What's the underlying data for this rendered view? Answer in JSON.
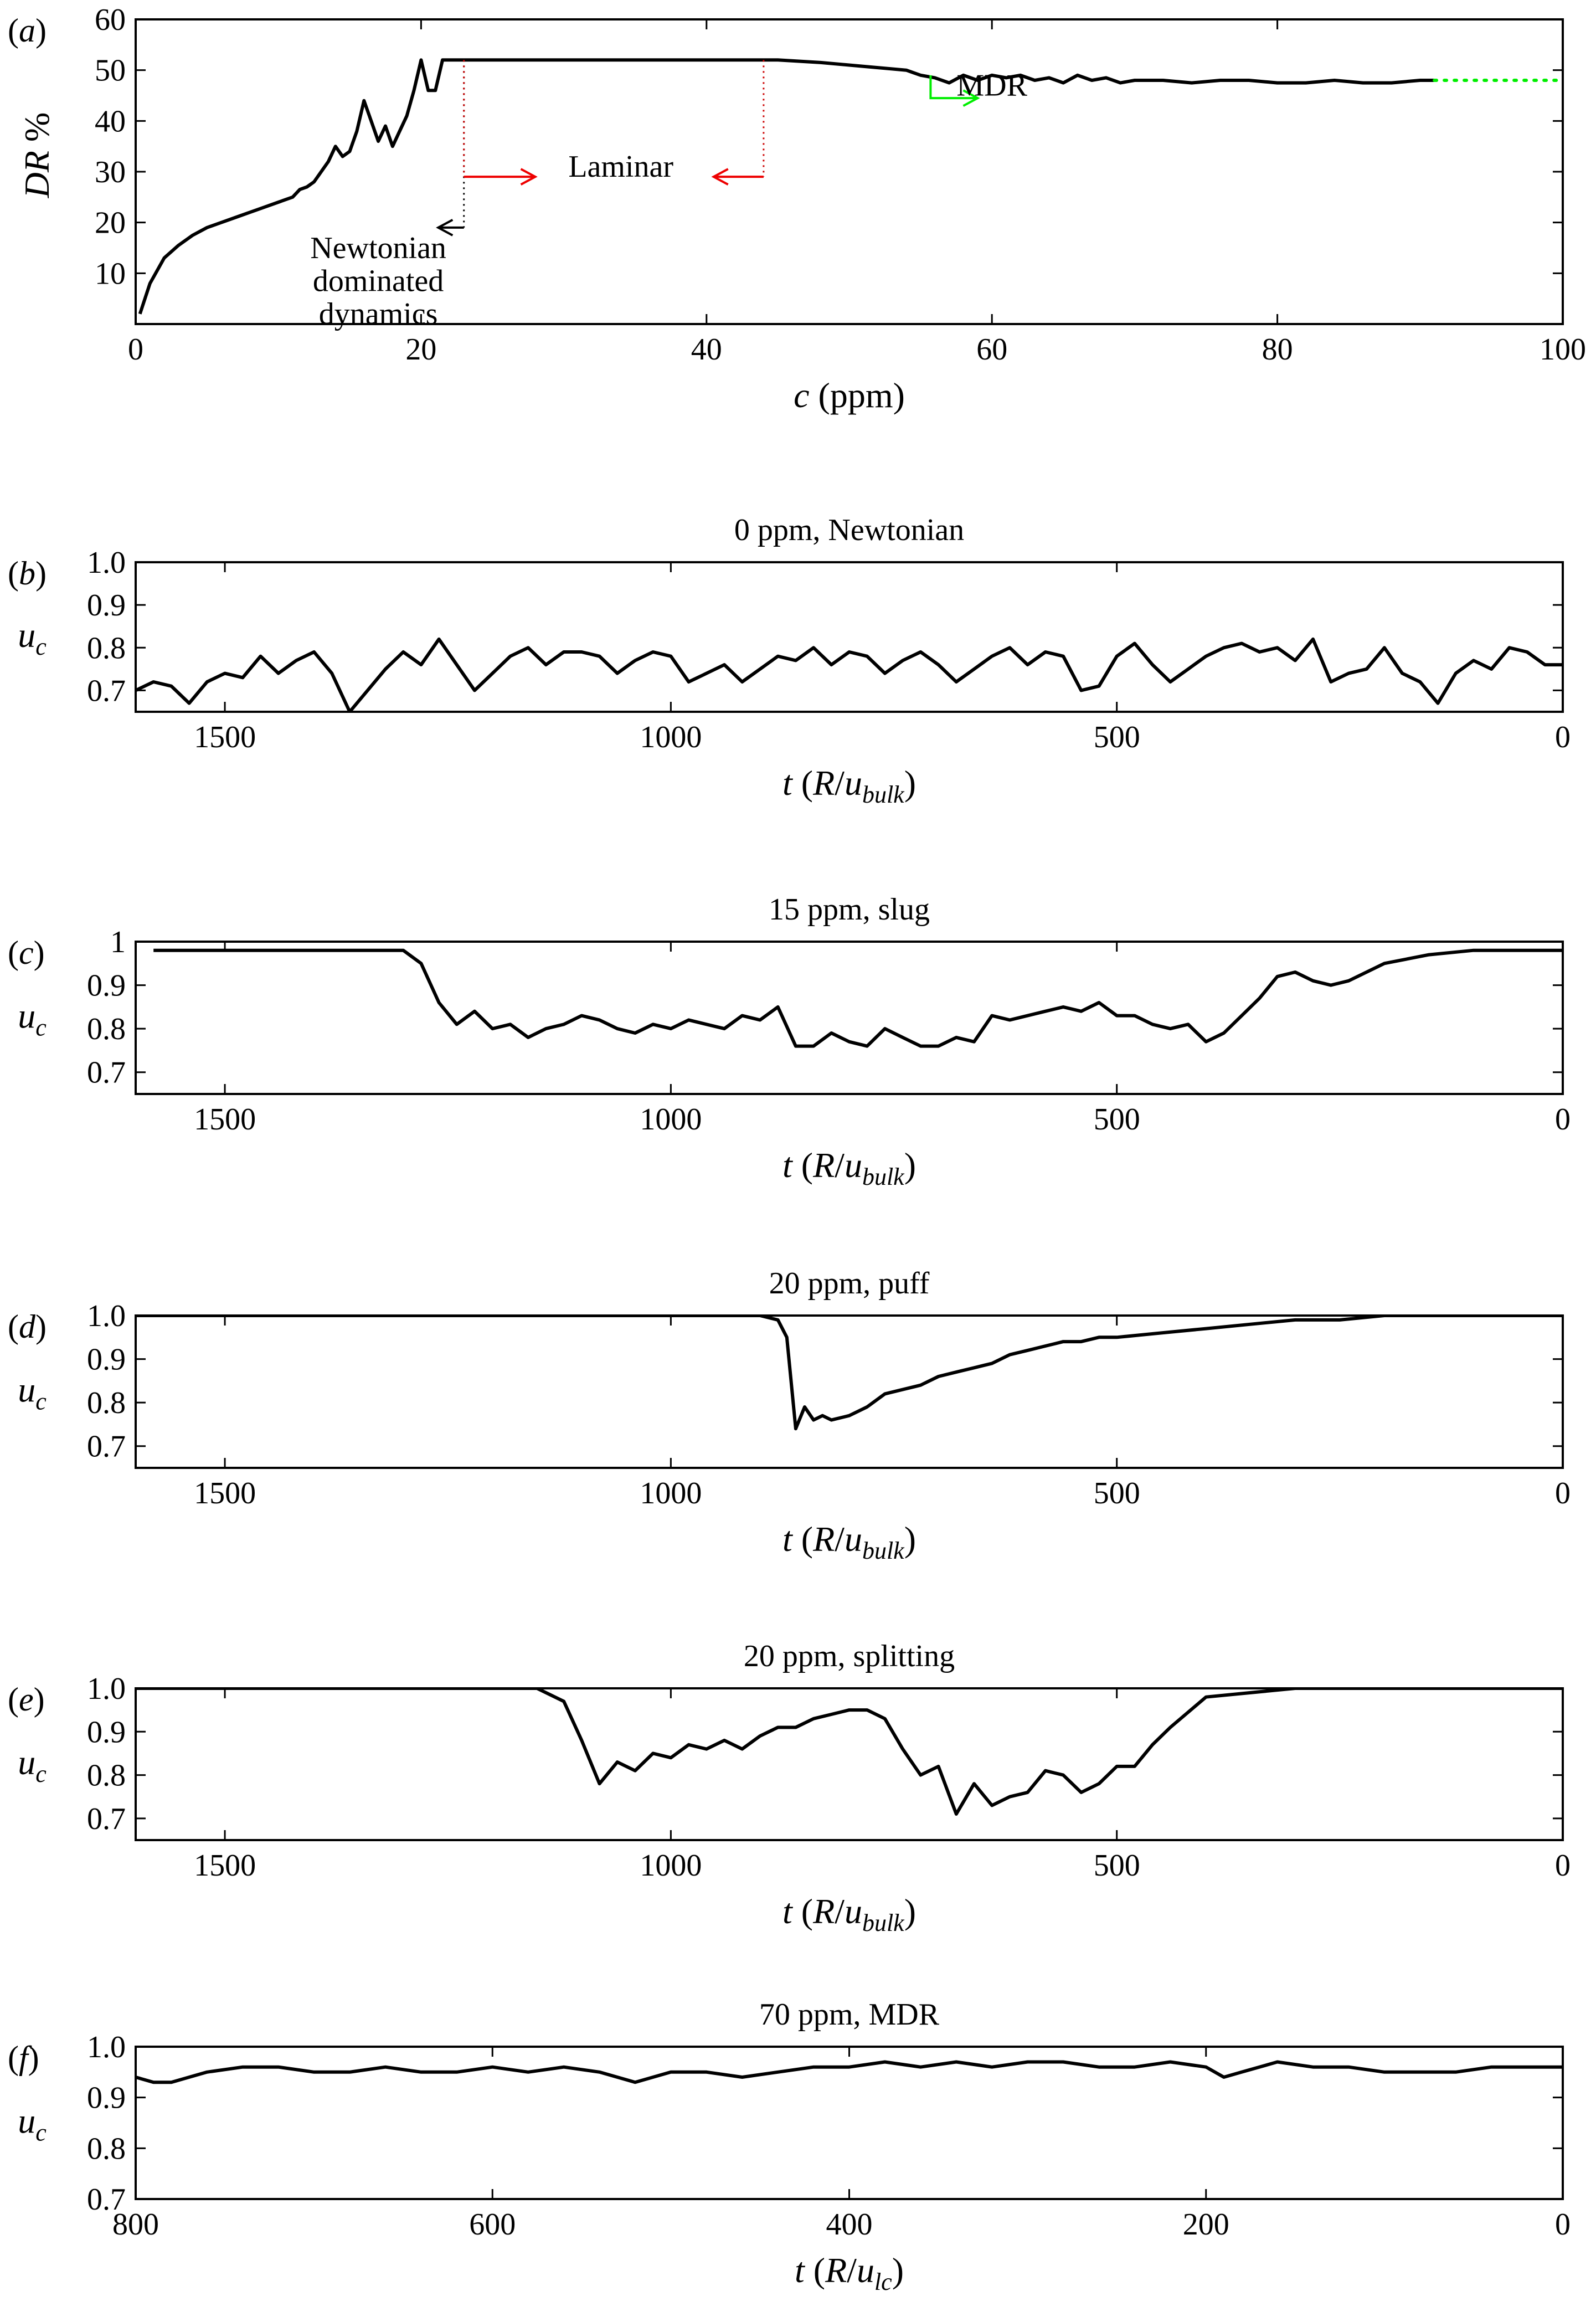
{
  "chart_data": [
    {
      "id": "a",
      "type": "line",
      "panel_label": "(a)",
      "title": "",
      "xlabel": "c (ppm)",
      "ylabel": "DR %",
      "xlim": [
        0,
        100
      ],
      "ylim": [
        0,
        60
      ],
      "xticks": [
        0,
        20,
        40,
        60,
        80,
        100
      ],
      "yticks": [
        10,
        20,
        30,
        40,
        50,
        60
      ],
      "series": [
        {
          "color": "#000000",
          "x": [
            0.3,
            1,
            2,
            3,
            4,
            5,
            6,
            7,
            8,
            9,
            10,
            11,
            11.5,
            12,
            12.5,
            13,
            13.5,
            14,
            14.5,
            15,
            15.5,
            16,
            16.5,
            17,
            17.5,
            18,
            18.5,
            19,
            19.5,
            20,
            20.5,
            21,
            21.5,
            22,
            22.5,
            23,
            25,
            30,
            35,
            40,
            45,
            48,
            50,
            52,
            54,
            55,
            56,
            57,
            58,
            59,
            60,
            61,
            62,
            63,
            64,
            65,
            66,
            67,
            68,
            69,
            70,
            72,
            74,
            76,
            78,
            80,
            82,
            84,
            86,
            88,
            90,
            91
          ],
          "y": [
            2,
            8,
            13,
            15.5,
            17.5,
            19,
            20,
            21,
            22,
            23,
            24,
            25,
            26.5,
            27,
            28,
            30,
            32,
            35,
            33,
            34,
            38,
            44,
            40,
            36,
            39,
            35,
            38,
            41,
            46,
            52,
            46,
            46,
            52,
            52,
            52,
            52,
            52,
            52,
            52,
            52,
            52,
            51.5,
            51,
            50.5,
            50,
            49,
            48.5,
            47.5,
            49,
            48,
            49,
            48.5,
            49,
            48,
            48.5,
            47.5,
            49,
            48,
            48.5,
            47.5,
            48,
            48,
            47.5,
            48,
            48,
            47.5,
            47.5,
            48,
            47.5,
            47.5,
            48,
            48
          ]
        },
        {
          "color": "#00ee00",
          "style": "dotted",
          "x": [
            91,
            100
          ],
          "y": [
            48,
            48
          ]
        }
      ],
      "annotations": [
        {
          "text": "Newtonian",
          "x": 17,
          "y": 13
        },
        {
          "text": "dominated",
          "x": 17,
          "y": 6.5
        },
        {
          "text": "dynamics",
          "x": 17,
          "y": 0
        },
        {
          "text": "Laminar",
          "x": 34,
          "y": 29
        },
        {
          "text": "MDR",
          "x": 60,
          "y": 45
        }
      ],
      "markers": [
        {
          "kind": "dotted-vline",
          "color": "#000000",
          "x": 23,
          "y_from": 52,
          "y_to": 19
        },
        {
          "kind": "dotted-vline",
          "color": "#cc0000",
          "x": 23,
          "y_from": 52,
          "y_to": 29
        },
        {
          "kind": "dotted-vline",
          "color": "#cc0000",
          "x": 44,
          "y_from": 52,
          "y_to": 29
        },
        {
          "kind": "arrow",
          "color": "#000000",
          "x_from": 23,
          "x_to": 21.2,
          "y": 19
        },
        {
          "kind": "arrow",
          "color": "#ee0000",
          "x_from": 23,
          "x_to": 28,
          "y": 29
        },
        {
          "kind": "arrow",
          "color": "#ee0000",
          "x_from": 44,
          "x_to": 40.5,
          "y": 29
        },
        {
          "kind": "elbow-arrow",
          "color": "#00ee00",
          "x": 55.7,
          "y_from": 49,
          "y_to": 44.5,
          "x_to": 59
        }
      ]
    },
    {
      "id": "b",
      "type": "line",
      "panel_label": "(b)",
      "title": "0 ppm, Newtonian",
      "xlabel": "t (R/ubulk)",
      "ylabel": "uc",
      "xlim": [
        1600,
        0
      ],
      "ylim": [
        0.65,
        1.0
      ],
      "xticks": [
        1500,
        1000,
        500,
        0
      ],
      "yticks": [
        0.7,
        0.8,
        0.9,
        1.0
      ],
      "ytick_labels": [
        "0.7",
        "0.8",
        "0.9",
        "1.0"
      ],
      "series": [
        {
          "color": "#000000",
          "x": [
            1600,
            1580,
            1560,
            1540,
            1520,
            1500,
            1480,
            1460,
            1440,
            1420,
            1400,
            1380,
            1360,
            1340,
            1320,
            1300,
            1280,
            1260,
            1240,
            1220,
            1200,
            1180,
            1160,
            1140,
            1120,
            1100,
            1080,
            1060,
            1040,
            1020,
            1000,
            980,
            960,
            940,
            920,
            900,
            880,
            860,
            840,
            820,
            800,
            780,
            760,
            740,
            720,
            700,
            680,
            660,
            640,
            620,
            600,
            580,
            560,
            540,
            520,
            500,
            480,
            460,
            440,
            420,
            400,
            380,
            360,
            340,
            320,
            300,
            280,
            260,
            240,
            220,
            200,
            180,
            160,
            140,
            120,
            100,
            80,
            60,
            40,
            20,
            0
          ],
          "y": [
            0.7,
            0.72,
            0.71,
            0.67,
            0.72,
            0.74,
            0.73,
            0.78,
            0.74,
            0.77,
            0.79,
            0.74,
            0.65,
            0.7,
            0.75,
            0.79,
            0.76,
            0.82,
            0.76,
            0.7,
            0.74,
            0.78,
            0.8,
            0.76,
            0.79,
            0.79,
            0.78,
            0.74,
            0.77,
            0.79,
            0.78,
            0.72,
            0.74,
            0.76,
            0.72,
            0.75,
            0.78,
            0.77,
            0.8,
            0.76,
            0.79,
            0.78,
            0.74,
            0.77,
            0.79,
            0.76,
            0.72,
            0.75,
            0.78,
            0.8,
            0.76,
            0.79,
            0.78,
            0.7,
            0.71,
            0.78,
            0.81,
            0.76,
            0.72,
            0.75,
            0.78,
            0.8,
            0.81,
            0.79,
            0.8,
            0.77,
            0.82,
            0.72,
            0.74,
            0.75,
            0.8,
            0.74,
            0.72,
            0.67,
            0.74,
            0.77,
            0.75,
            0.8,
            0.79,
            0.76,
            0.76
          ]
        }
      ]
    },
    {
      "id": "c",
      "type": "line",
      "panel_label": "(c)",
      "title": "15 ppm, slug",
      "xlabel": "t (R/ubulk)",
      "ylabel": "uc",
      "xlim": [
        1600,
        0
      ],
      "ylim": [
        0.65,
        1.0
      ],
      "xticks": [
        1500,
        1000,
        500,
        0
      ],
      "yticks": [
        0.7,
        0.8,
        0.9,
        1.0
      ],
      "ytick_labels": [
        "0.7",
        "0.8",
        "0.9",
        "1"
      ],
      "series": [
        {
          "color": "#000000",
          "x": [
            1580,
            1500,
            1400,
            1300,
            1280,
            1260,
            1240,
            1220,
            1200,
            1180,
            1160,
            1140,
            1120,
            1100,
            1080,
            1060,
            1040,
            1020,
            1000,
            980,
            960,
            940,
            920,
            900,
            880,
            860,
            840,
            820,
            800,
            780,
            760,
            740,
            720,
            700,
            680,
            660,
            640,
            620,
            600,
            580,
            560,
            540,
            520,
            500,
            480,
            460,
            440,
            420,
            400,
            380,
            360,
            340,
            320,
            300,
            280,
            260,
            240,
            200,
            150,
            100,
            50,
            0
          ],
          "y": [
            0.98,
            0.98,
            0.98,
            0.98,
            0.95,
            0.86,
            0.81,
            0.84,
            0.8,
            0.81,
            0.78,
            0.8,
            0.81,
            0.83,
            0.82,
            0.8,
            0.79,
            0.81,
            0.8,
            0.82,
            0.81,
            0.8,
            0.83,
            0.82,
            0.85,
            0.76,
            0.76,
            0.79,
            0.77,
            0.76,
            0.8,
            0.78,
            0.76,
            0.76,
            0.78,
            0.77,
            0.83,
            0.82,
            0.83,
            0.84,
            0.85,
            0.84,
            0.86,
            0.83,
            0.83,
            0.81,
            0.8,
            0.81,
            0.77,
            0.79,
            0.83,
            0.87,
            0.92,
            0.93,
            0.91,
            0.9,
            0.91,
            0.95,
            0.97,
            0.98,
            0.98,
            0.98
          ]
        }
      ]
    },
    {
      "id": "d",
      "type": "line",
      "panel_label": "(d)",
      "title": "20 ppm, puff",
      "xlabel": "t (R/ubulk)",
      "ylabel": "uc",
      "xlim": [
        1600,
        0
      ],
      "ylim": [
        0.65,
        1.0
      ],
      "xticks": [
        1500,
        1000,
        500,
        0
      ],
      "yticks": [
        0.7,
        0.8,
        0.9,
        1.0
      ],
      "ytick_labels": [
        "0.7",
        "0.8",
        "0.9",
        "1.0"
      ],
      "series": [
        {
          "color": "#000000",
          "x": [
            1600,
            1300,
            1000,
            900,
            880,
            870,
            860,
            850,
            840,
            830,
            820,
            800,
            780,
            760,
            740,
            720,
            700,
            680,
            660,
            640,
            620,
            600,
            580,
            560,
            540,
            520,
            500,
            450,
            400,
            350,
            300,
            250,
            200,
            150,
            100,
            50,
            0
          ],
          "y": [
            1.0,
            1.0,
            1.0,
            1.0,
            0.99,
            0.95,
            0.74,
            0.79,
            0.76,
            0.77,
            0.76,
            0.77,
            0.79,
            0.82,
            0.83,
            0.84,
            0.86,
            0.87,
            0.88,
            0.89,
            0.91,
            0.92,
            0.93,
            0.94,
            0.94,
            0.95,
            0.95,
            0.96,
            0.97,
            0.98,
            0.99,
            0.99,
            1.0,
            1.0,
            1.0,
            1.0,
            1.0
          ]
        }
      ]
    },
    {
      "id": "e",
      "type": "line",
      "panel_label": "(e)",
      "title": "20 ppm, splitting",
      "xlabel": "t (R/ubulk)",
      "ylabel": "uc",
      "xlim": [
        1600,
        0
      ],
      "ylim": [
        0.65,
        1.0
      ],
      "xticks": [
        1500,
        1000,
        500,
        0
      ],
      "yticks": [
        0.7,
        0.8,
        0.9,
        1.0
      ],
      "ytick_labels": [
        "0.7",
        "0.8",
        "0.9",
        "1.0"
      ],
      "series": [
        {
          "color": "#000000",
          "x": [
            1600,
            1300,
            1150,
            1120,
            1100,
            1080,
            1060,
            1040,
            1020,
            1000,
            980,
            960,
            940,
            920,
            900,
            880,
            860,
            840,
            820,
            800,
            780,
            760,
            740,
            720,
            700,
            680,
            660,
            640,
            620,
            600,
            580,
            560,
            540,
            520,
            500,
            480,
            460,
            440,
            400,
            300,
            200,
            100,
            0
          ],
          "y": [
            1.0,
            1.0,
            1.0,
            0.97,
            0.88,
            0.78,
            0.83,
            0.81,
            0.85,
            0.84,
            0.87,
            0.86,
            0.88,
            0.86,
            0.89,
            0.91,
            0.91,
            0.93,
            0.94,
            0.95,
            0.95,
            0.93,
            0.86,
            0.8,
            0.82,
            0.71,
            0.78,
            0.73,
            0.75,
            0.76,
            0.81,
            0.8,
            0.76,
            0.78,
            0.82,
            0.82,
            0.87,
            0.91,
            0.98,
            1.0,
            1.0,
            1.0,
            1.0
          ]
        }
      ]
    },
    {
      "id": "f",
      "type": "line",
      "panel_label": "(f)",
      "title": "70 ppm, MDR",
      "xlabel": "t (R/ulc)",
      "ylabel": "uc",
      "xlim": [
        800,
        0
      ],
      "ylim": [
        0.7,
        1.0
      ],
      "xticks": [
        800,
        600,
        400,
        200,
        0
      ],
      "yticks": [
        0.7,
        0.8,
        0.9,
        1.0
      ],
      "ytick_labels": [
        "0.7",
        "0.8",
        "0.9",
        "1.0"
      ],
      "series": [
        {
          "color": "#000000",
          "x": [
            800,
            790,
            780,
            770,
            760,
            740,
            720,
            700,
            680,
            660,
            640,
            620,
            600,
            580,
            560,
            540,
            520,
            500,
            480,
            460,
            440,
            420,
            400,
            380,
            360,
            340,
            320,
            300,
            280,
            260,
            240,
            220,
            200,
            190,
            180,
            160,
            140,
            120,
            100,
            80,
            60,
            40,
            20,
            0
          ],
          "y": [
            0.94,
            0.93,
            0.93,
            0.94,
            0.95,
            0.96,
            0.96,
            0.95,
            0.95,
            0.96,
            0.95,
            0.95,
            0.96,
            0.95,
            0.96,
            0.95,
            0.93,
            0.95,
            0.95,
            0.94,
            0.95,
            0.96,
            0.96,
            0.97,
            0.96,
            0.97,
            0.96,
            0.97,
            0.97,
            0.96,
            0.96,
            0.97,
            0.96,
            0.94,
            0.95,
            0.97,
            0.96,
            0.96,
            0.95,
            0.95,
            0.95,
            0.96,
            0.96,
            0.96
          ]
        }
      ]
    }
  ]
}
